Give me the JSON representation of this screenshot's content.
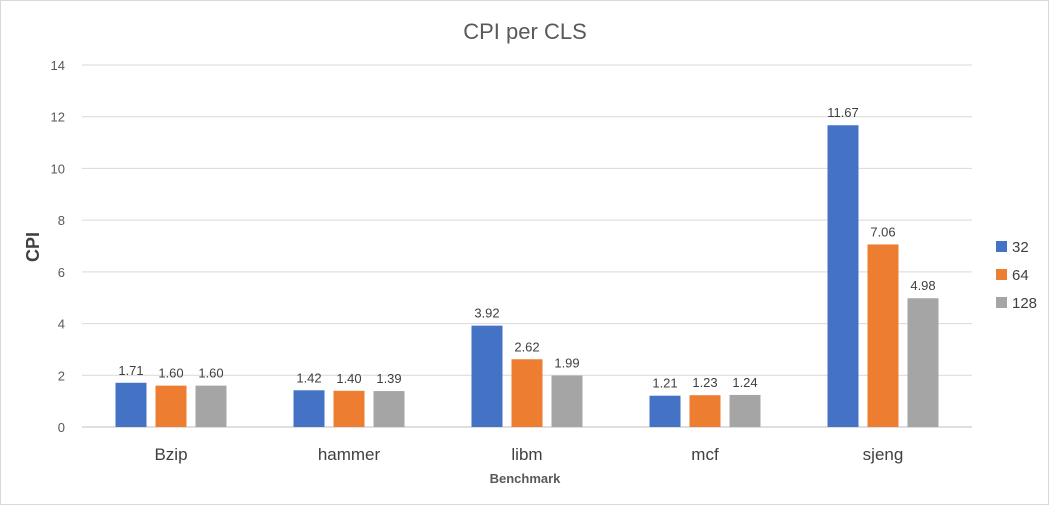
{
  "chart_data": {
    "type": "bar",
    "title": "CPI per CLS",
    "xlabel": "Benchmark",
    "ylabel": "CPI",
    "ylim": [
      0,
      14
    ],
    "yticks": [
      0,
      2,
      4,
      6,
      8,
      10,
      12,
      14
    ],
    "categories": [
      "Bzip",
      "hammer",
      "libm",
      "mcf",
      "sjeng"
    ],
    "series": [
      {
        "name": "32",
        "color": "#4472C4",
        "values": [
          1.71,
          1.42,
          3.92,
          1.21,
          11.67
        ],
        "labels": [
          "1.71",
          "1.42",
          "3.92",
          "1.21",
          "11.67"
        ]
      },
      {
        "name": "64",
        "color": "#ED7D31",
        "values": [
          1.6,
          1.4,
          2.62,
          1.23,
          7.06
        ],
        "labels": [
          "1.60",
          "1.40",
          "2.62",
          "1.23",
          "7.06"
        ]
      },
      {
        "name": "128",
        "color": "#A5A5A5",
        "values": [
          1.6,
          1.39,
          1.99,
          1.24,
          4.98
        ],
        "labels": [
          "1.60",
          "1.39",
          "1.99",
          "1.24",
          "4.98"
        ]
      }
    ],
    "grid": true,
    "legend": "right"
  }
}
